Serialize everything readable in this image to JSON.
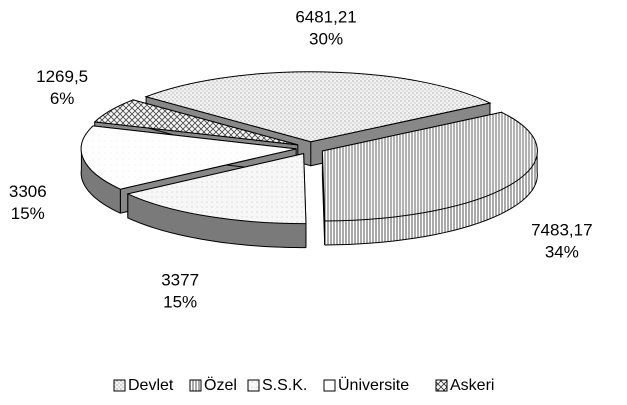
{
  "chart_data": {
    "type": "pie",
    "categories": [
      "Devlet",
      "Özel",
      "S.S.K.",
      "Üniversite",
      "Askeri"
    ],
    "values": [
      6481.21,
      7483.17,
      3377,
      3306,
      1269.5
    ],
    "value_labels": [
      "6481,21",
      "7483,17",
      "3377",
      "3306",
      "1269,5"
    ],
    "percent_labels": [
      "30%",
      "34%",
      "15%",
      "15%",
      "6%"
    ],
    "colors": [
      "#ececec",
      "#d8d8d8",
      "#f2f2f2",
      "#fbfbfb",
      "#d0d0d0"
    ],
    "legend": "bottom"
  }
}
